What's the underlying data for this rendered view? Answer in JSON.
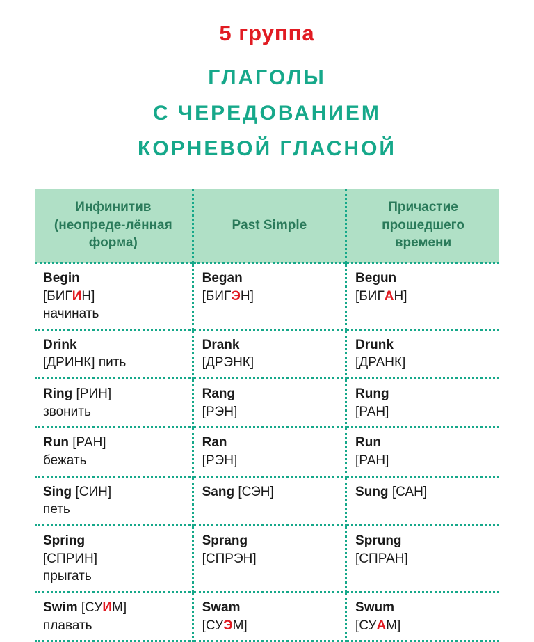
{
  "colors": {
    "red": "#e11b22",
    "teal": "#16a88a",
    "headerBg": "#b0e0c6",
    "headerText": "#2a7a5a",
    "dots": "#16a88a",
    "black": "#1a1a1a"
  },
  "title": {
    "group": "5  группа",
    "line1": "ГЛАГОЛЫ",
    "line2": "С    ЧЕРЕДОВАНИЕМ",
    "line3": "КОРНЕВОЙ    ГЛАСНОЙ",
    "title_fontsize": 30
  },
  "headers": {
    "col1": "Инфинитив (неопреде-лённая форма)",
    "col2": "Past Simple",
    "col3": "Причастие прошедшего времени"
  },
  "rows": [
    {
      "c1": {
        "word": "Begin",
        "tr_pre": "[БИГ",
        "tr_hl": "И",
        "tr_post": "Н]",
        "meaning": "начинать",
        "inline": false
      },
      "c2": {
        "word": "Began",
        "tr_pre": "[БИГ",
        "tr_hl": "Э",
        "tr_post": "Н]",
        "meaning": ""
      },
      "c3": {
        "word": "Begun",
        "tr_pre": "[БИГ",
        "tr_hl": "А",
        "tr_post": "Н]",
        "meaning": ""
      }
    },
    {
      "c1": {
        "word": "Drink",
        "tr_pre": "[ДРИНК] ",
        "tr_hl": "",
        "tr_post": "",
        "meaning": "пить",
        "inline": true
      },
      "c2": {
        "word": "Drank",
        "tr_pre": "[ДРЭНК]",
        "tr_hl": "",
        "tr_post": "",
        "meaning": ""
      },
      "c3": {
        "word": "Drunk",
        "tr_pre": "[ДРАНК]",
        "tr_hl": "",
        "tr_post": "",
        "meaning": ""
      }
    },
    {
      "c1": {
        "word": "Ring",
        "tr_pre": " [РИН]",
        "tr_hl": "",
        "tr_post": "",
        "meaning": "звонить",
        "word_inline": true
      },
      "c2": {
        "word": "Rang",
        "tr_pre": "[РЭН]",
        "tr_hl": "",
        "tr_post": "",
        "meaning": ""
      },
      "c3": {
        "word": "Rung",
        "tr_pre": "[РАН]",
        "tr_hl": "",
        "tr_post": "",
        "meaning": ""
      }
    },
    {
      "c1": {
        "word": "Run",
        "tr_pre": " [РАН]",
        "tr_hl": "",
        "tr_post": "",
        "meaning": "бежать",
        "word_inline": true
      },
      "c2": {
        "word": "Ran",
        "tr_pre": "[РЭН]",
        "tr_hl": "",
        "tr_post": "",
        "meaning": ""
      },
      "c3": {
        "word": "Run",
        "tr_pre": "[РАН]",
        "tr_hl": "",
        "tr_post": "",
        "meaning": ""
      }
    },
    {
      "c1": {
        "word": "Sing",
        "tr_pre": " [СИН]",
        "tr_hl": "",
        "tr_post": "",
        "meaning": "петь",
        "word_inline": true
      },
      "c2": {
        "word": "Sang",
        "tr_pre": " [СЭН]",
        "tr_hl": "",
        "tr_post": "",
        "meaning": "",
        "word_inline": true
      },
      "c3": {
        "word": "Sung",
        "tr_pre": " [САН]",
        "tr_hl": "",
        "tr_post": "",
        "meaning": "",
        "word_inline": true
      }
    },
    {
      "c1": {
        "word": "Spring",
        "tr_pre": "[СПРИН]",
        "tr_hl": "",
        "tr_post": "",
        "meaning": "прыгать"
      },
      "c2": {
        "word": "Sprang",
        "tr_pre": "[СПРЭН]",
        "tr_hl": "",
        "tr_post": "",
        "meaning": ""
      },
      "c3": {
        "word": "Sprung",
        "tr_pre": "[СПРАН]",
        "tr_hl": "",
        "tr_post": "",
        "meaning": ""
      }
    },
    {
      "c1": {
        "word": "Swim",
        "tr_pre": " [СУ",
        "tr_hl": "И",
        "tr_post": "М]",
        "meaning": "плавать",
        "word_inline": true
      },
      "c2": {
        "word": "Swam",
        "tr_pre": "[СУ",
        "tr_hl": "Э",
        "tr_post": "М]",
        "meaning": ""
      },
      "c3": {
        "word": "Swum",
        "tr_pre": "[СУ",
        "tr_hl": "А",
        "tr_post": "М]",
        "meaning": ""
      }
    }
  ]
}
